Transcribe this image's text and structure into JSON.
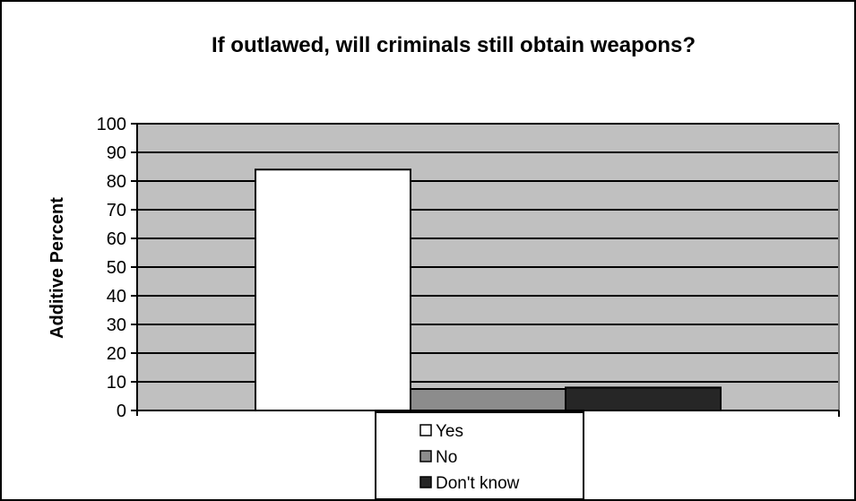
{
  "chart_data": {
    "type": "bar",
    "title": "If outlawed, will criminals still obtain weapons?",
    "xlabel": "",
    "ylabel": "Additive Percent",
    "ylim": [
      0,
      100
    ],
    "yticks": [
      0,
      10,
      20,
      30,
      40,
      50,
      60,
      70,
      80,
      90,
      100
    ],
    "grid": true,
    "legend_position": "bottom",
    "series": [
      {
        "name": "Yes",
        "values": [
          84
        ],
        "color": "#ffffff"
      },
      {
        "name": "No",
        "values": [
          7.5
        ],
        "color": "#8c8c8c"
      },
      {
        "name": "Don't know",
        "values": [
          8
        ],
        "color": "#262626"
      }
    ],
    "colors": {
      "plot_background": "#c0c0c0",
      "gridline": "#000000",
      "border": "#000000"
    }
  }
}
